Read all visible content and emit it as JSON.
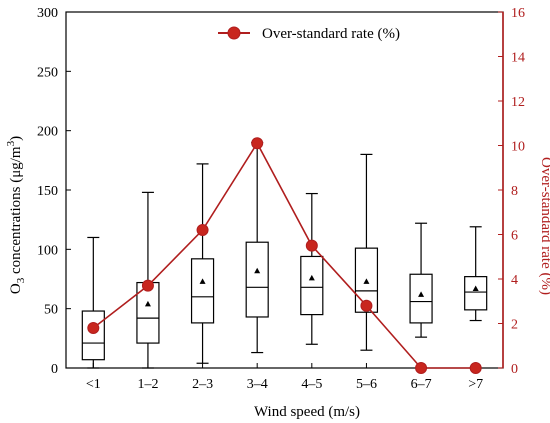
{
  "chart_data": {
    "type": "box",
    "xlabel": "Wind speed (m/s)",
    "ylabel_prefix": "O",
    "ylabel_sub": "3",
    "ylabel_mid": " concentrations (μg/m",
    "ylabel_sup": "3",
    "ylabel_suffix": ")",
    "y2label": "Over-standard rate (%)",
    "ylim": [
      0,
      300
    ],
    "y2lim": [
      0,
      16
    ],
    "yticks": [
      0,
      50,
      100,
      150,
      200,
      250,
      300
    ],
    "y2ticks": [
      0,
      2,
      4,
      6,
      8,
      10,
      12,
      14,
      16
    ],
    "categories": [
      "<1",
      "1–2",
      "2–3",
      "3–4",
      "4–5",
      "5–6",
      "6–7",
      ">7"
    ],
    "boxes": [
      {
        "min": 0,
        "q1": 7,
        "median": 21,
        "q3": 48,
        "max": 110,
        "mean": 35
      },
      {
        "min": 0,
        "q1": 21,
        "median": 42,
        "q3": 72,
        "max": 148,
        "mean": 54
      },
      {
        "min": 4,
        "q1": 38,
        "median": 60,
        "q3": 92,
        "max": 172,
        "mean": 73
      },
      {
        "min": 13,
        "q1": 43,
        "median": 68,
        "q3": 106,
        "max": 190,
        "mean": 82
      },
      {
        "min": 20,
        "q1": 45,
        "median": 68,
        "q3": 94,
        "max": 147,
        "mean": 76
      },
      {
        "min": 15,
        "q1": 47,
        "median": 65,
        "q3": 101,
        "max": 180,
        "mean": 73
      },
      {
        "min": 26,
        "q1": 38,
        "median": 56,
        "q3": 79,
        "max": 122,
        "mean": 62
      },
      {
        "min": 40,
        "q1": 49,
        "median": 64,
        "q3": 77,
        "max": 119,
        "mean": 67
      }
    ],
    "line_series": {
      "name": "Over-standard rate (%)",
      "values": [
        1.8,
        3.7,
        6.2,
        10.1,
        5.5,
        2.8,
        0.0,
        0.0
      ],
      "color": "#b01e1e"
    },
    "legend_position": "top-center",
    "grid": false
  }
}
